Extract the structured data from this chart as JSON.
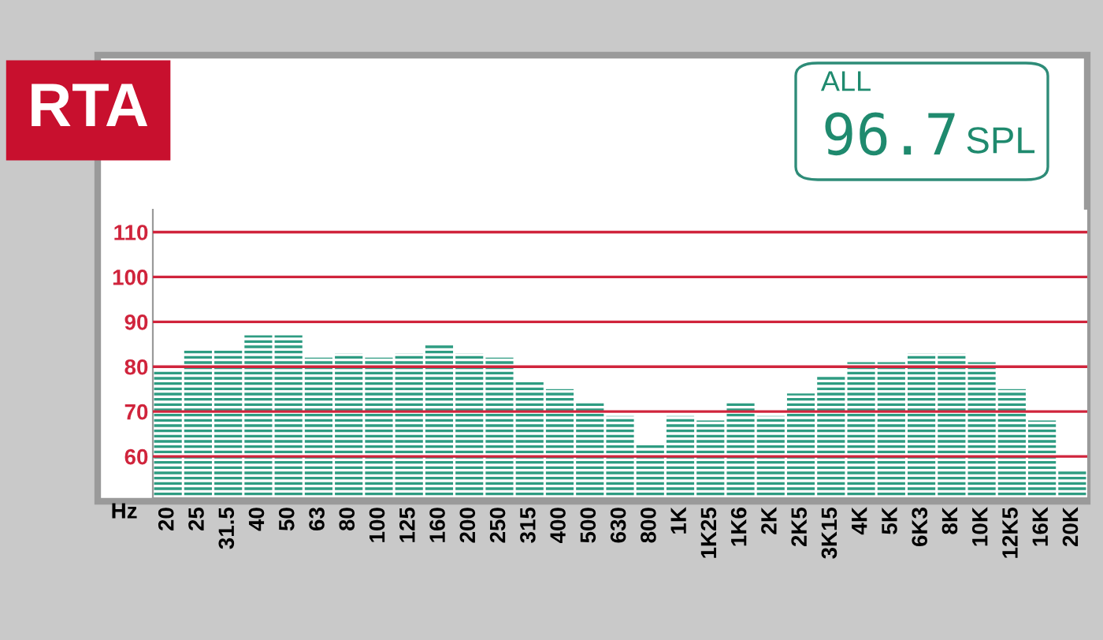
{
  "chart_data": {
    "type": "bar",
    "title": "RTA",
    "xlabel": "Hz",
    "categories": [
      "20",
      "25",
      "31.5",
      "40",
      "50",
      "63",
      "80",
      "100",
      "125",
      "160",
      "200",
      "250",
      "315",
      "400",
      "500",
      "630",
      "800",
      "1K",
      "1K25",
      "1K6",
      "2K",
      "2K5",
      "3K15",
      "4K",
      "5K",
      "6K3",
      "8K",
      "10K",
      "12K5",
      "16K",
      "20K"
    ],
    "values": [
      79,
      84,
      84,
      87,
      87,
      82,
      83,
      82,
      83,
      85,
      83,
      82,
      77,
      75,
      72,
      69,
      63,
      69,
      68,
      72,
      69,
      74,
      78,
      81,
      81,
      83,
      83,
      81,
      75,
      68,
      57
    ],
    "color": "#2e9c82",
    "ylim": [
      50.7,
      115
    ],
    "yticks": [
      60,
      70,
      80,
      90,
      100,
      110
    ],
    "grid": "y",
    "annotations": [
      "ALL",
      "96.7",
      "SPL"
    ]
  }
}
